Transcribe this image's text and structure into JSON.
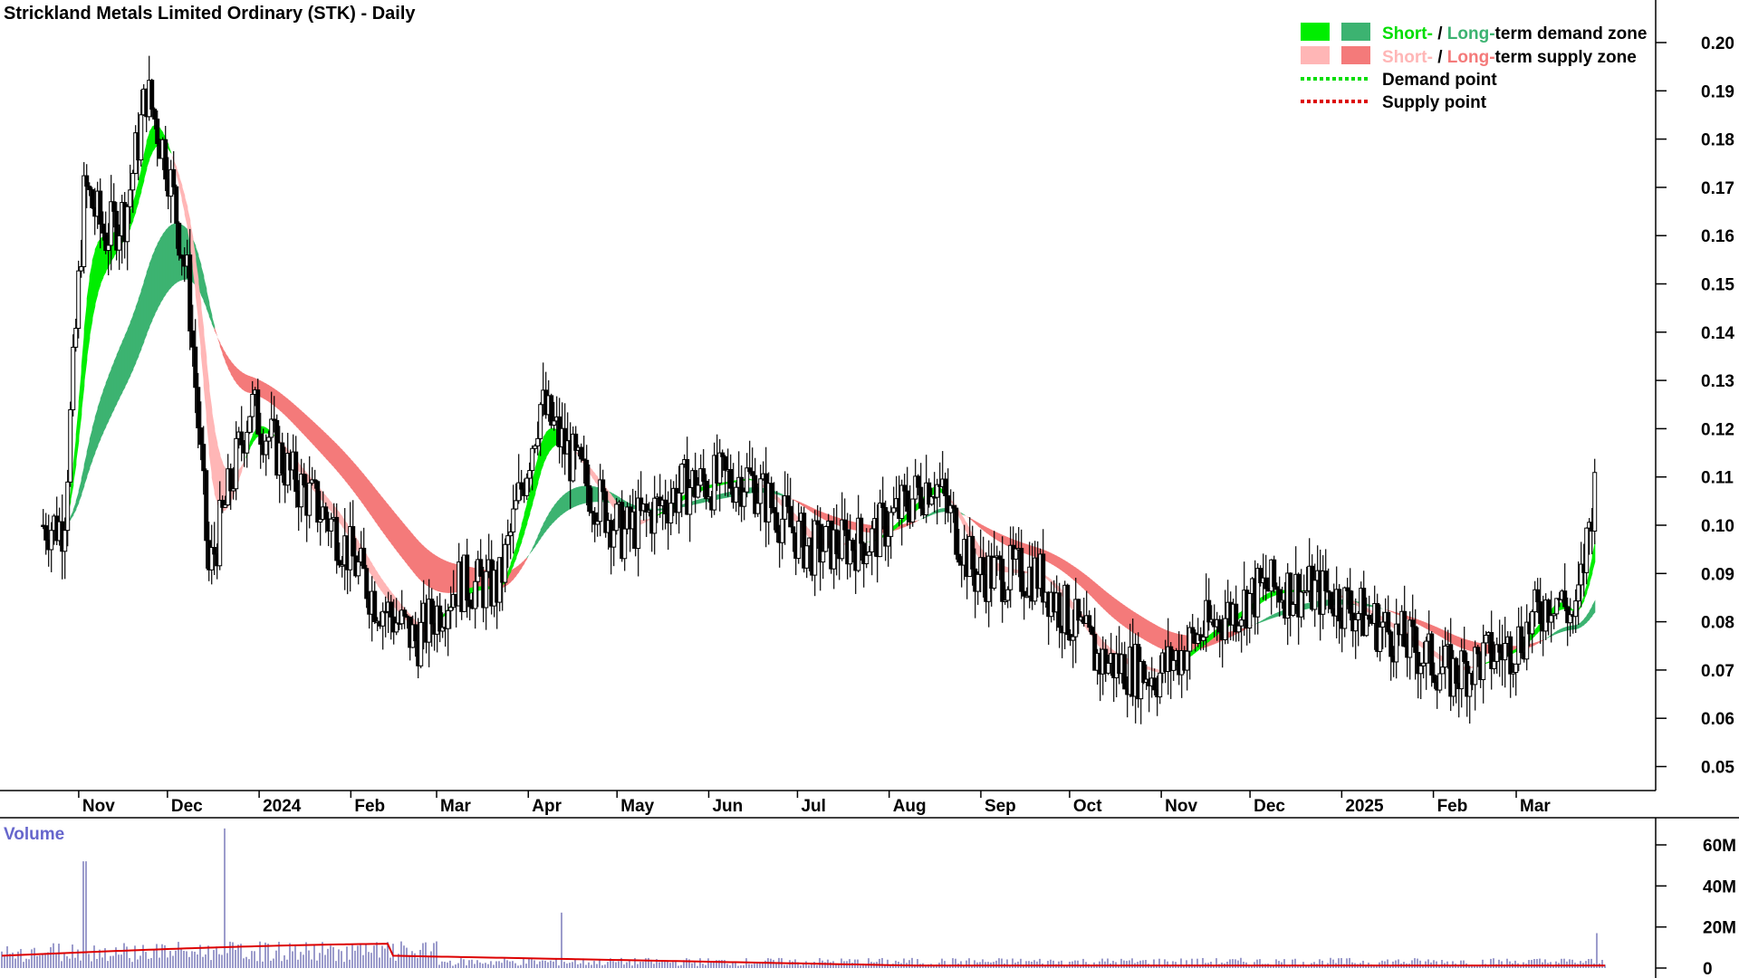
{
  "chart_data": {
    "type": "candlestick",
    "title": "Strickland Metals Limited Ordinary (STK) - Daily",
    "y_axis": {
      "ticks": [
        "0.20",
        "0.19",
        "0.18",
        "0.17",
        "0.16",
        "0.15",
        "0.14",
        "0.13",
        "0.12",
        "0.11",
        "0.10",
        "0.09",
        "0.08",
        "0.07",
        "0.06",
        "0.05"
      ],
      "ylim": [
        0.04,
        0.205
      ],
      "position": "right"
    },
    "x_axis": {
      "labels": [
        "Nov",
        "Dec",
        "2024",
        "Feb",
        "Mar",
        "Apr",
        "May",
        "Jun",
        "Jul",
        "Aug",
        "Sep",
        "Oct",
        "Nov",
        "Dec",
        "2025",
        "Feb",
        "Mar"
      ]
    },
    "legend": {
      "placement": "top-right",
      "demand_zone": {
        "short": "Short-",
        "sep": " / ",
        "long": "Long-",
        "rest": "term demand zone"
      },
      "supply_zone": {
        "short": "Short-",
        "sep": " / ",
        "long": "Long-",
        "rest": "term supply zone"
      },
      "demand_point": "Demand point",
      "supply_point": "Supply point"
    },
    "colors": {
      "short_demand": "#00ee00",
      "long_demand": "#3cb371",
      "short_supply": "#ffb6b6",
      "long_supply": "#f47a7a",
      "transition": "#ff6a1f",
      "demand_point": "#00dd00",
      "supply_point": "#dd0000",
      "volume_bar": "#5a5aaa",
      "volume_ma": "#dd0000",
      "volume_title": "#6666cc"
    },
    "price_series": [
      {
        "date": "2023-10-20",
        "close": 0.1
      },
      {
        "date": "2023-10-27",
        "close": 0.1
      },
      {
        "date": "2023-11-03",
        "close": 0.17
      },
      {
        "date": "2023-11-10",
        "close": 0.16
      },
      {
        "date": "2023-11-17",
        "close": 0.165
      },
      {
        "date": "2023-11-24",
        "close": 0.19
      },
      {
        "date": "2023-12-01",
        "close": 0.175
      },
      {
        "date": "2023-12-08",
        "close": 0.15
      },
      {
        "date": "2023-12-15",
        "close": 0.09
      },
      {
        "date": "2023-12-29",
        "close": 0.125
      },
      {
        "date": "2024-01-12",
        "close": 0.11
      },
      {
        "date": "2024-01-26",
        "close": 0.1
      },
      {
        "date": "2024-02-09",
        "close": 0.085
      },
      {
        "date": "2024-02-23",
        "close": 0.076
      },
      {
        "date": "2024-03-08",
        "close": 0.088
      },
      {
        "date": "2024-03-22",
        "close": 0.087
      },
      {
        "date": "2024-04-05",
        "close": 0.125
      },
      {
        "date": "2024-04-19",
        "close": 0.11
      },
      {
        "date": "2024-05-03",
        "close": 0.098
      },
      {
        "date": "2024-05-24",
        "close": 0.108
      },
      {
        "date": "2024-06-14",
        "close": 0.11
      },
      {
        "date": "2024-07-05",
        "close": 0.095
      },
      {
        "date": "2024-07-26",
        "close": 0.097
      },
      {
        "date": "2024-08-16",
        "close": 0.11
      },
      {
        "date": "2024-08-30",
        "close": 0.09
      },
      {
        "date": "2024-09-20",
        "close": 0.09
      },
      {
        "date": "2024-10-11",
        "close": 0.072
      },
      {
        "date": "2024-10-31",
        "close": 0.069
      },
      {
        "date": "2024-11-15",
        "close": 0.078
      },
      {
        "date": "2024-12-06",
        "close": 0.087
      },
      {
        "date": "2024-12-27",
        "close": 0.086
      },
      {
        "date": "2025-01-17",
        "close": 0.078
      },
      {
        "date": "2025-02-07",
        "close": 0.069
      },
      {
        "date": "2025-02-28",
        "close": 0.075
      },
      {
        "date": "2025-03-14",
        "close": 0.086
      },
      {
        "date": "2025-03-21",
        "close": 0.08
      },
      {
        "date": "2025-03-28",
        "close": 0.11
      }
    ],
    "volume": {
      "title": "Volume",
      "ticks": [
        "60M",
        "40M",
        "20M",
        "0"
      ],
      "ylim": [
        0,
        70
      ],
      "spikes": [
        {
          "date": "2023-11-03",
          "value": 52
        },
        {
          "date": "2023-12-20",
          "value": 68
        },
        {
          "date": "2024-04-12",
          "value": 27
        },
        {
          "date": "2025-03-28",
          "value": 17
        }
      ]
    }
  }
}
